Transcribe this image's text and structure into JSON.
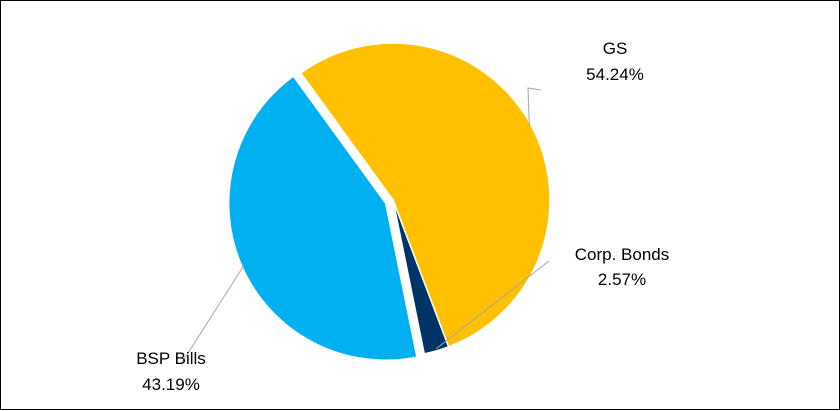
{
  "chart_data": {
    "type": "pie",
    "slices": [
      {
        "name": "GS",
        "value": 54.24,
        "value_label": "54.24%",
        "color": "#FFC000",
        "exploded": false
      },
      {
        "name": "Corp. Bonds",
        "value": 2.57,
        "value_label": "2.57%",
        "color": "#003366",
        "exploded": false
      },
      {
        "name": "BSP Bills",
        "value": 43.19,
        "value_label": "43.19%",
        "color": "#00B0F0",
        "exploded": true
      }
    ],
    "leader_line_color": "#A6A6A6",
    "legend": "none"
  }
}
